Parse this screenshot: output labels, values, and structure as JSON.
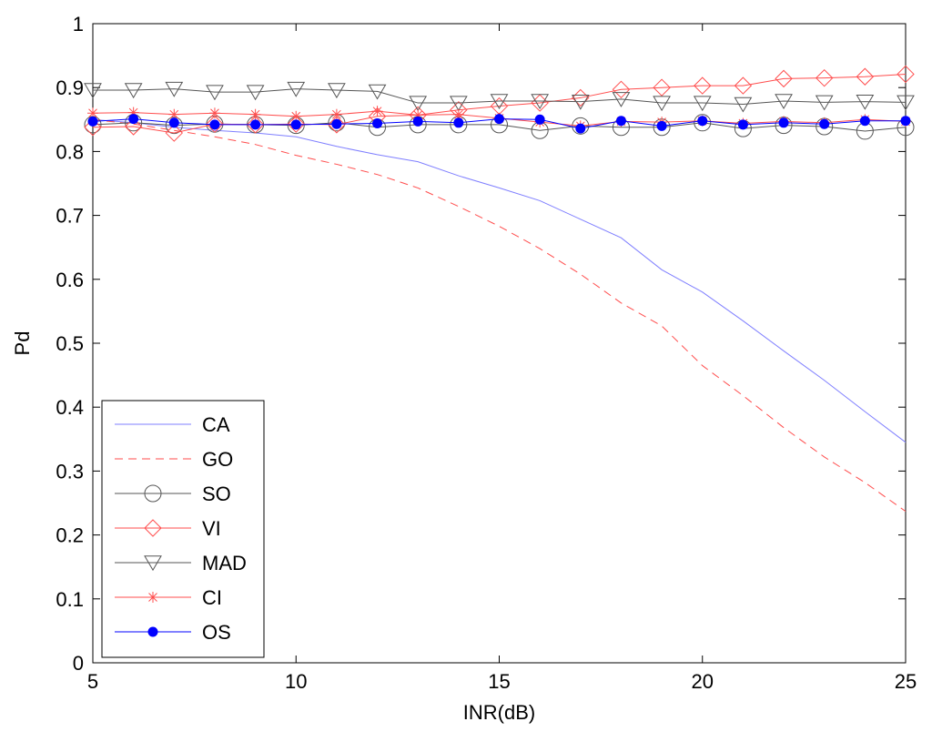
{
  "chart_data": {
    "type": "line",
    "title": "",
    "xlabel": "INR(dB)",
    "ylabel": "Pd",
    "xlim": [
      5,
      25
    ],
    "ylim": [
      0,
      1
    ],
    "xticks": [
      5,
      10,
      15,
      20,
      25
    ],
    "yticks": [
      0,
      0.1,
      0.2,
      0.3,
      0.4,
      0.5,
      0.6,
      0.7,
      0.8,
      0.9,
      1
    ],
    "xtick_labels": [
      "5",
      "10",
      "15",
      "20",
      "25"
    ],
    "ytick_labels": [
      "0",
      "0.1",
      "0.2",
      "0.3",
      "0.4",
      "0.5",
      "0.6",
      "0.7",
      "0.8",
      "0.9",
      "1"
    ],
    "grid": false,
    "legend_position": "bottom-left",
    "x": [
      5,
      6,
      7,
      8,
      9,
      10,
      11,
      12,
      13,
      14,
      15,
      16,
      17,
      18,
      19,
      20,
      21,
      22,
      23,
      24,
      25
    ],
    "series": [
      {
        "name": "CA",
        "color": "#7f7fff",
        "dash": "solid",
        "marker": "none",
        "values": [
          0.85,
          0.845,
          0.838,
          0.833,
          0.829,
          0.823,
          0.808,
          0.795,
          0.784,
          0.762,
          0.743,
          0.723,
          0.694,
          0.665,
          0.615,
          0.58,
          0.535,
          0.488,
          0.442,
          0.393,
          0.345
        ]
      },
      {
        "name": "GO",
        "color": "#ff4d4d",
        "dash": "dashed",
        "marker": "none",
        "values": [
          0.85,
          0.843,
          0.833,
          0.823,
          0.811,
          0.794,
          0.78,
          0.764,
          0.743,
          0.714,
          0.683,
          0.648,
          0.608,
          0.563,
          0.527,
          0.465,
          0.418,
          0.368,
          0.322,
          0.282,
          0.237
        ]
      },
      {
        "name": "SO",
        "color": "#555555",
        "dash": "solid",
        "marker": "circle",
        "values": [
          0.842,
          0.845,
          0.841,
          0.843,
          0.842,
          0.841,
          0.845,
          0.838,
          0.842,
          0.842,
          0.842,
          0.833,
          0.84,
          0.838,
          0.838,
          0.845,
          0.836,
          0.841,
          0.839,
          0.832,
          0.838
        ]
      },
      {
        "name": "VI",
        "color": "#ff4d4d",
        "dash": "solid",
        "marker": "diamond",
        "values": [
          0.838,
          0.839,
          0.829,
          0.843,
          0.842,
          0.843,
          0.842,
          0.855,
          0.857,
          0.865,
          0.871,
          0.876,
          0.884,
          0.897,
          0.9,
          0.903,
          0.903,
          0.914,
          0.915,
          0.917,
          0.921
        ]
      },
      {
        "name": "MAD",
        "color": "#555555",
        "dash": "solid",
        "marker": "triangle-down",
        "values": [
          0.896,
          0.896,
          0.898,
          0.893,
          0.893,
          0.898,
          0.896,
          0.894,
          0.876,
          0.876,
          0.879,
          0.879,
          0.878,
          0.882,
          0.876,
          0.876,
          0.874,
          0.879,
          0.877,
          0.878,
          0.877
        ]
      },
      {
        "name": "CI",
        "color": "#ff4d4d",
        "dash": "solid",
        "marker": "asterisk",
        "values": [
          0.86,
          0.861,
          0.858,
          0.86,
          0.858,
          0.855,
          0.858,
          0.863,
          0.857,
          0.858,
          0.852,
          0.846,
          0.84,
          0.847,
          0.846,
          0.848,
          0.844,
          0.847,
          0.845,
          0.85,
          0.847
        ]
      },
      {
        "name": "OS",
        "color": "#0000ff",
        "dash": "solid",
        "marker": "filled-circle",
        "values": [
          0.847,
          0.851,
          0.845,
          0.842,
          0.842,
          0.842,
          0.843,
          0.844,
          0.847,
          0.845,
          0.851,
          0.85,
          0.836,
          0.848,
          0.84,
          0.848,
          0.842,
          0.845,
          0.843,
          0.848,
          0.848
        ]
      }
    ]
  }
}
